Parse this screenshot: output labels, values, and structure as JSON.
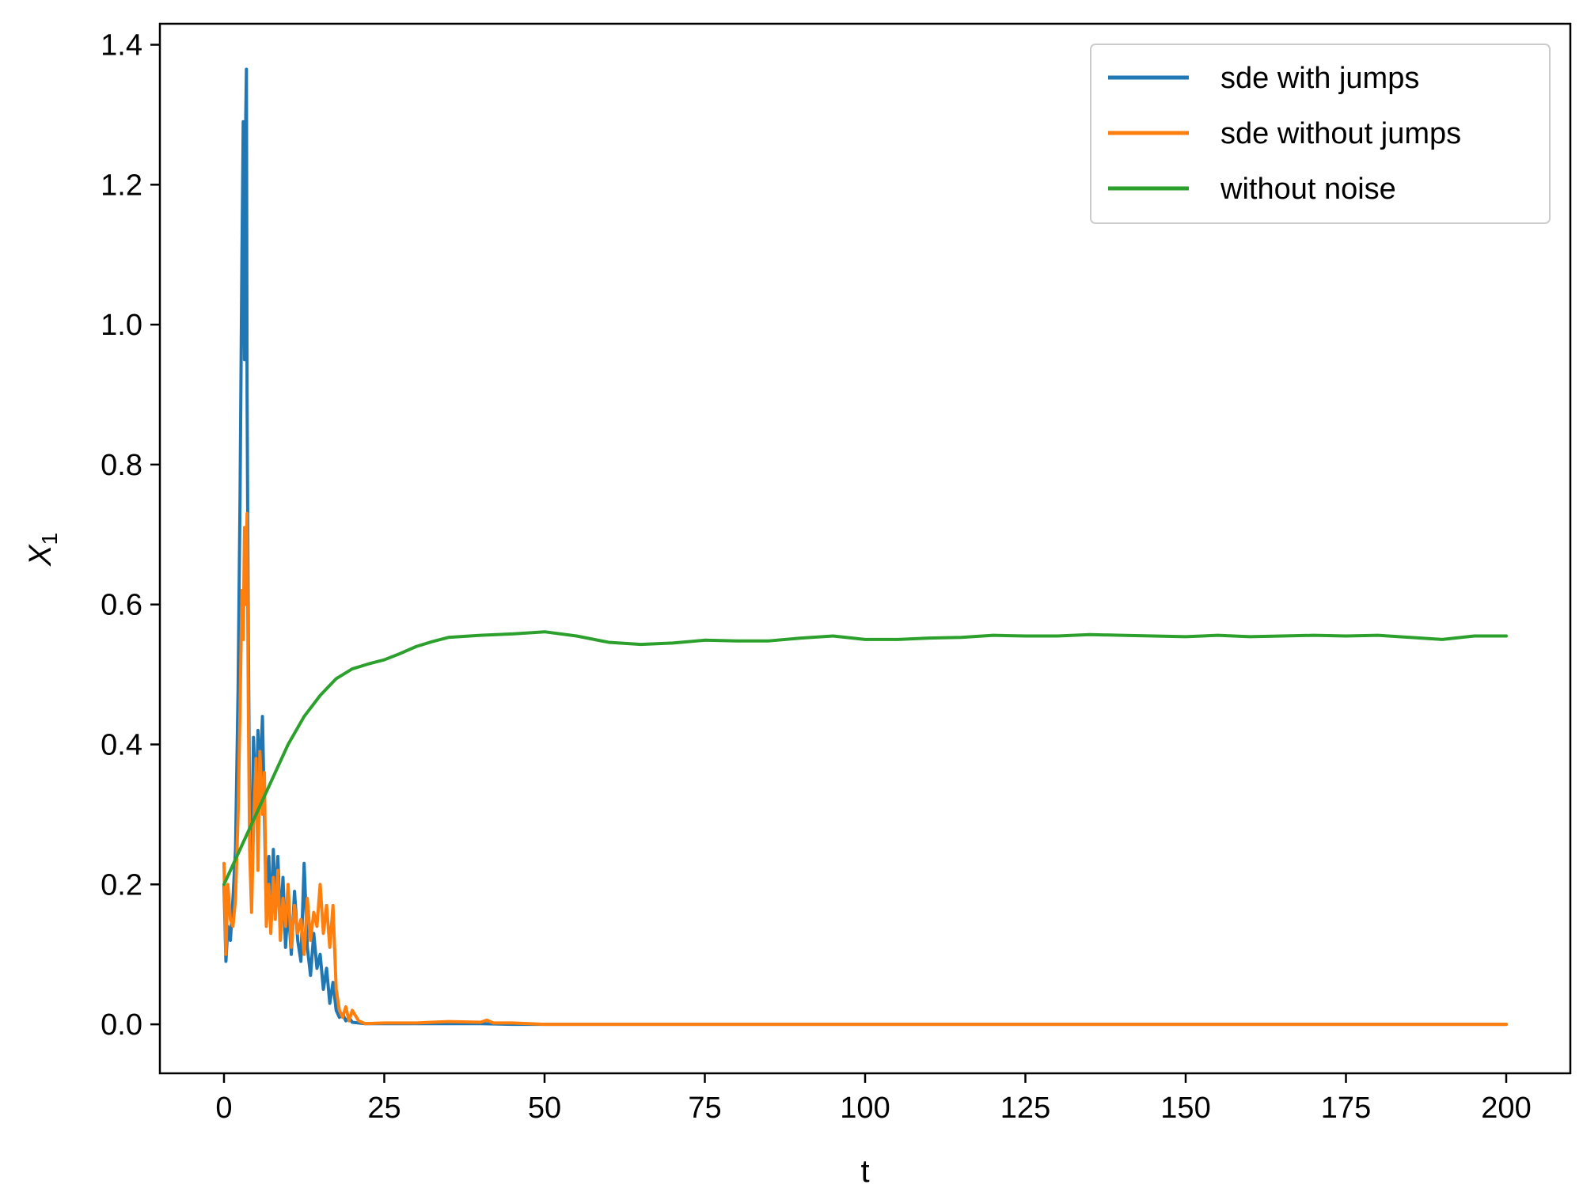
{
  "chart_data": {
    "type": "line",
    "xlabel": "t",
    "ylabel_main": "X",
    "ylabel_sub": "1",
    "xlim": [
      -10,
      210
    ],
    "ylim": [
      -0.07,
      1.43
    ],
    "xticks": [
      0,
      25,
      50,
      75,
      100,
      125,
      150,
      175,
      200
    ],
    "xtick_labels": [
      "0",
      "25",
      "50",
      "75",
      "100",
      "125",
      "150",
      "175",
      "200"
    ],
    "yticks": [
      0.0,
      0.2,
      0.4,
      0.6,
      0.8,
      1.0,
      1.2,
      1.4
    ],
    "ytick_labels": [
      "0.0",
      "0.2",
      "0.4",
      "0.6",
      "0.8",
      "1.0",
      "1.2",
      "1.4"
    ],
    "grid": false,
    "legend_position": "top-right",
    "series": [
      {
        "name": "sde with jumps",
        "color": "#1f77b4",
        "x": [
          0,
          0.3,
          0.6,
          1.0,
          1.4,
          1.8,
          2.2,
          2.5,
          2.8,
          3.0,
          3.2,
          3.4,
          3.5,
          3.6,
          3.8,
          4.0,
          4.3,
          4.6,
          5.0,
          5.3,
          5.6,
          6.0,
          6.3,
          6.6,
          7.0,
          7.3,
          7.7,
          8.0,
          8.4,
          8.8,
          9.2,
          9.6,
          10.0,
          10.5,
          11.0,
          11.5,
          12.0,
          12.5,
          13.0,
          13.5,
          14.0,
          14.5,
          15.0,
          15.5,
          16.0,
          16.5,
          17.0,
          17.5,
          18.0,
          18.5,
          19.0,
          19.5,
          20.0,
          21.0,
          22.0,
          25.0,
          30.0,
          35.0,
          40.0,
          45.0,
          50.0,
          75.0,
          100.0,
          125.0,
          150.0,
          175.0,
          200.0
        ],
        "values": [
          0.2,
          0.09,
          0.14,
          0.12,
          0.18,
          0.25,
          0.48,
          0.75,
          1.1,
          1.29,
          0.95,
          1.3,
          1.365,
          0.9,
          0.55,
          0.3,
          0.22,
          0.41,
          0.3,
          0.42,
          0.35,
          0.44,
          0.3,
          0.16,
          0.24,
          0.14,
          0.25,
          0.17,
          0.24,
          0.14,
          0.21,
          0.11,
          0.17,
          0.1,
          0.19,
          0.12,
          0.09,
          0.23,
          0.11,
          0.07,
          0.13,
          0.08,
          0.1,
          0.05,
          0.08,
          0.03,
          0.06,
          0.02,
          0.01,
          0.015,
          0.005,
          0.01,
          0.003,
          0.002,
          0.001,
          0.001,
          0.001,
          0.001,
          0.001,
          0.0,
          0.0,
          0.0,
          0.0,
          0.0,
          0.0,
          0.0,
          0.0
        ]
      },
      {
        "name": "sde without jumps",
        "color": "#ff7f0e",
        "x": [
          0,
          0.3,
          0.6,
          1.0,
          1.4,
          1.8,
          2.2,
          2.5,
          2.8,
          3.0,
          3.2,
          3.4,
          3.6,
          3.8,
          4.0,
          4.3,
          4.6,
          5.0,
          5.3,
          5.6,
          6.0,
          6.3,
          6.6,
          7.0,
          7.3,
          7.7,
          8.0,
          8.4,
          8.8,
          9.2,
          9.6,
          10.0,
          10.5,
          11.0,
          11.5,
          12.0,
          12.5,
          13.0,
          13.5,
          14.0,
          14.5,
          15.0,
          15.5,
          16.0,
          16.5,
          17.0,
          17.5,
          18.0,
          18.5,
          19.0,
          19.5,
          20.0,
          21.0,
          22.0,
          25.0,
          30.0,
          35.0,
          40.0,
          41.0,
          42.0,
          45.0,
          50.0,
          75.0,
          100.0,
          125.0,
          150.0,
          175.0,
          200.0
        ],
        "values": [
          0.23,
          0.1,
          0.2,
          0.15,
          0.14,
          0.18,
          0.3,
          0.45,
          0.62,
          0.55,
          0.71,
          0.6,
          0.73,
          0.45,
          0.25,
          0.16,
          0.28,
          0.38,
          0.22,
          0.39,
          0.3,
          0.36,
          0.14,
          0.2,
          0.13,
          0.21,
          0.15,
          0.22,
          0.12,
          0.18,
          0.14,
          0.2,
          0.11,
          0.17,
          0.13,
          0.15,
          0.1,
          0.18,
          0.12,
          0.16,
          0.14,
          0.2,
          0.13,
          0.17,
          0.11,
          0.17,
          0.05,
          0.02,
          0.01,
          0.025,
          0.005,
          0.02,
          0.005,
          0.001,
          0.002,
          0.002,
          0.004,
          0.003,
          0.006,
          0.002,
          0.002,
          0.0,
          0.0,
          0.0,
          0.0,
          0.0,
          0.0,
          0.0
        ]
      },
      {
        "name": "without noise",
        "color": "#2ca02c",
        "x": [
          0,
          2.5,
          5,
          7.5,
          10,
          12.5,
          15,
          17.5,
          20,
          22.5,
          25,
          27.5,
          30,
          32.5,
          35,
          40,
          45,
          50,
          55,
          60,
          65,
          70,
          75,
          80,
          85,
          90,
          95,
          100,
          105,
          110,
          115,
          120,
          125,
          130,
          135,
          140,
          145,
          150,
          155,
          160,
          165,
          170,
          175,
          180,
          185,
          190,
          195,
          200
        ],
        "values": [
          0.2,
          0.25,
          0.3,
          0.35,
          0.4,
          0.44,
          0.47,
          0.494,
          0.508,
          0.515,
          0.521,
          0.53,
          0.54,
          0.547,
          0.553,
          0.556,
          0.558,
          0.561,
          0.555,
          0.546,
          0.543,
          0.545,
          0.549,
          0.548,
          0.548,
          0.552,
          0.555,
          0.55,
          0.55,
          0.552,
          0.553,
          0.556,
          0.555,
          0.555,
          0.557,
          0.556,
          0.555,
          0.554,
          0.556,
          0.554,
          0.555,
          0.556,
          0.555,
          0.556,
          0.553,
          0.55,
          0.555,
          0.555
        ]
      }
    ]
  }
}
